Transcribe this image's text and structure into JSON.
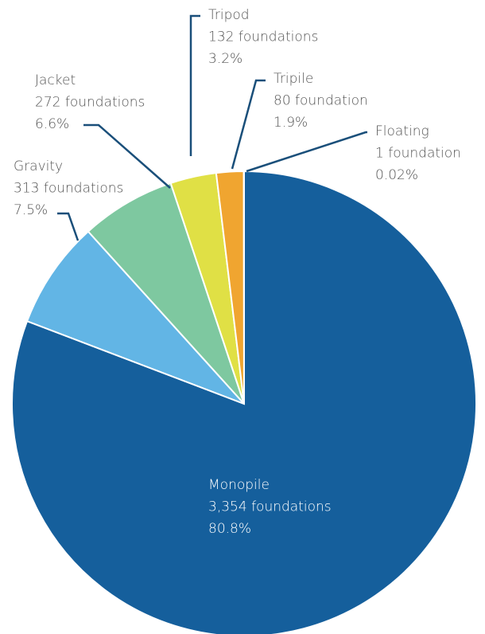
{
  "chart_data": {
    "type": "pie",
    "categories": [
      "Monopile",
      "Gravity",
      "Jacket",
      "Tripod",
      "Tripile",
      "Floating"
    ],
    "values": [
      80.8,
      7.5,
      6.6,
      3.2,
      1.9,
      0.02
    ],
    "value_labels": [
      "80.8%",
      "7.5%",
      "6.6%",
      "3.2%",
      "1.9%",
      "0.02%"
    ],
    "counts": [
      3354,
      313,
      272,
      132,
      80,
      1
    ],
    "count_labels": [
      "3,354 foundations",
      "313 foundations",
      "272 foundations",
      "132 foundations",
      "80 foundation",
      "1 foundation"
    ],
    "colors": [
      "#155f9c",
      "#62b5e5",
      "#7ec8a0",
      "#e0e045",
      "#f0a530",
      "#f0a530"
    ]
  }
}
